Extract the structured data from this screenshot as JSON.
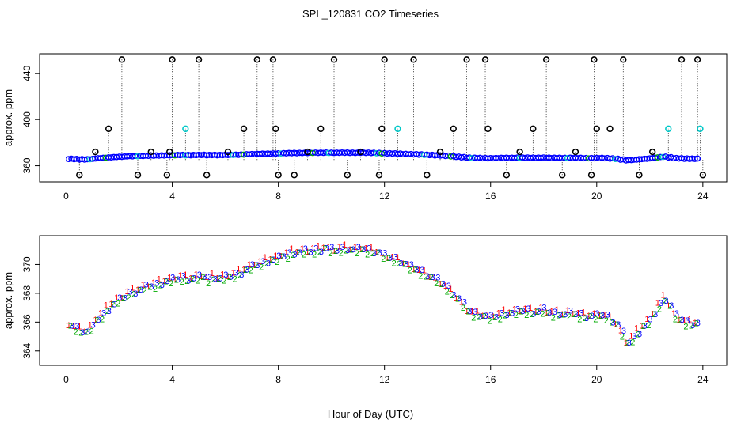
{
  "figure": {
    "title": "SPL_120831  CO2 Timeseries",
    "xlabel": "Hour of Day (UTC)"
  },
  "chart_data": [
    {
      "type": "scatter",
      "panel": "top",
      "ylabel": "approx. ppm",
      "xlim": [
        -1.0,
        24.9
      ],
      "ylim": [
        346,
        457
      ],
      "xticks": [
        0,
        4,
        8,
        12,
        16,
        20,
        24
      ],
      "xtick_labels": [
        "0",
        "4",
        "8",
        "12",
        "16",
        "20",
        "24"
      ],
      "yticks": [
        360,
        400,
        440
      ],
      "ytick_labels": [
        "360",
        "400",
        "440"
      ],
      "colors": {
        "series": "#0000ff",
        "secondary": "#00c8c8",
        "outlier": "#000000",
        "alt": "#00aa00"
      },
      "series": [
        {
          "marker": "o",
          "x": [
            0.1,
            0.3,
            0.5,
            0.7,
            0.9,
            1.1,
            1.3,
            1.5,
            1.7,
            1.9,
            2.1,
            2.3,
            2.5,
            2.7,
            2.9,
            3.1,
            3.3,
            3.5,
            3.7,
            3.9,
            4.1,
            4.3,
            4.5,
            4.7,
            4.9,
            5.1,
            5.3,
            5.5,
            5.7,
            5.9,
            6.1,
            6.3,
            6.5,
            6.7,
            6.9,
            7.1,
            7.3,
            7.5,
            7.7,
            7.9,
            8.1,
            8.3,
            8.5,
            8.7,
            8.9,
            9.1,
            9.3,
            9.5,
            9.7,
            9.9,
            10.1,
            10.3,
            10.5,
            10.7,
            10.9,
            11.1,
            11.3,
            11.5,
            11.7,
            11.9,
            12.1,
            12.3,
            12.5,
            12.7,
            12.9,
            13.1,
            13.3,
            13.5,
            13.7,
            13.9,
            14.1,
            14.3,
            14.5,
            14.7,
            14.9,
            15.1,
            15.3,
            15.5,
            15.7,
            15.9,
            16.1,
            16.3,
            16.5,
            16.7,
            16.9,
            17.1,
            17.3,
            17.5,
            17.7,
            17.9,
            18.1,
            18.3,
            18.5,
            18.7,
            18.9,
            19.1,
            19.3,
            19.5,
            19.7,
            19.9,
            20.1,
            20.3,
            20.5,
            20.7,
            20.9,
            21.1,
            21.3,
            21.5,
            21.7,
            21.9,
            22.1,
            22.3,
            22.5,
            22.7,
            22.9,
            23.1,
            23.3,
            23.5,
            23.7
          ],
          "y": [
            365.8,
            365.6,
            365.4,
            365.3,
            365.6,
            366.2,
            366.5,
            366.9,
            367.2,
            367.5,
            367.7,
            368.0,
            368.1,
            368.2,
            368.4,
            368.5,
            368.6,
            368.7,
            368.8,
            368.9,
            369.0,
            369.1,
            369.0,
            369.0,
            369.1,
            369.2,
            369.0,
            369.1,
            369.0,
            369.1,
            369.2,
            369.3,
            369.4,
            369.6,
            369.8,
            370.0,
            370.1,
            370.2,
            370.3,
            370.4,
            370.6,
            370.7,
            370.8,
            370.8,
            370.9,
            370.9,
            371.0,
            371.0,
            371.1,
            371.0,
            371.0,
            371.1,
            371.1,
            371.0,
            371.0,
            371.1,
            371.0,
            370.9,
            370.8,
            370.6,
            370.5,
            370.4,
            370.2,
            370.0,
            369.8,
            369.7,
            369.5,
            369.3,
            369.1,
            368.9,
            368.7,
            368.4,
            368.0,
            367.6,
            367.2,
            366.8,
            366.6,
            366.5,
            366.4,
            366.3,
            366.4,
            366.5,
            366.6,
            366.6,
            366.7,
            366.8,
            366.8,
            366.7,
            366.7,
            366.8,
            366.7,
            366.6,
            366.6,
            366.5,
            366.6,
            366.6,
            366.5,
            366.4,
            366.4,
            366.4,
            366.5,
            366.4,
            366.1,
            365.8,
            365.2,
            364.6,
            364.9,
            365.3,
            365.7,
            366.0,
            366.6,
            367.2,
            367.6,
            367.1,
            366.4,
            366.2,
            366.0,
            365.9,
            365.9
          ]
        }
      ],
      "outliers": {
        "marker": "o",
        "x": [
          0.5,
          1.1,
          1.6,
          2.1,
          2.7,
          3.2,
          3.8,
          3.9,
          4.0,
          4.5,
          5.0,
          5.3,
          6.1,
          6.7,
          7.2,
          7.8,
          7.9,
          8.0,
          8.6,
          9.1,
          9.6,
          10.1,
          10.6,
          11.1,
          11.8,
          11.9,
          12.0,
          12.5,
          13.1,
          13.6,
          14.1,
          14.6,
          15.1,
          15.8,
          15.9,
          16.6,
          17.1,
          17.6,
          18.1,
          18.7,
          19.2,
          19.8,
          19.9,
          20.0,
          20.5,
          21.0,
          21.6,
          22.1,
          22.7,
          23.2,
          23.8,
          23.9,
          24.0
        ],
        "y": [
          352,
          372,
          392,
          452,
          352,
          372,
          352,
          372,
          452,
          392,
          452,
          352,
          372,
          392,
          452,
          452,
          392,
          352,
          352,
          372,
          392,
          452,
          352,
          372,
          352,
          392,
          452,
          392,
          452,
          352,
          372,
          392,
          452,
          452,
          392,
          352,
          372,
          392,
          452,
          352,
          372,
          352,
          452,
          392,
          392,
          452,
          352,
          372,
          392,
          452,
          452,
          392,
          352
        ]
      }
    },
    {
      "type": "scatter",
      "panel": "bottom",
      "ylabel": "approx. ppm",
      "xlim": [
        -1.0,
        24.9
      ],
      "ylim": [
        363.0,
        372.0
      ],
      "xticks": [
        0,
        4,
        8,
        12,
        16,
        20,
        24
      ],
      "xtick_labels": [
        "0",
        "4",
        "8",
        "12",
        "16",
        "20",
        "24"
      ],
      "yticks": [
        364,
        366,
        368,
        370
      ],
      "ytick_labels": [
        "364",
        "366",
        "368",
        "370"
      ],
      "series": [
        {
          "marker": "1",
          "color": "#ff0000",
          "offset": 0.25
        },
        {
          "marker": "2",
          "color": "#00aa00",
          "offset": -0.2
        },
        {
          "marker": "3",
          "color": "#0000ff",
          "offset": 0.1
        }
      ]
    }
  ]
}
